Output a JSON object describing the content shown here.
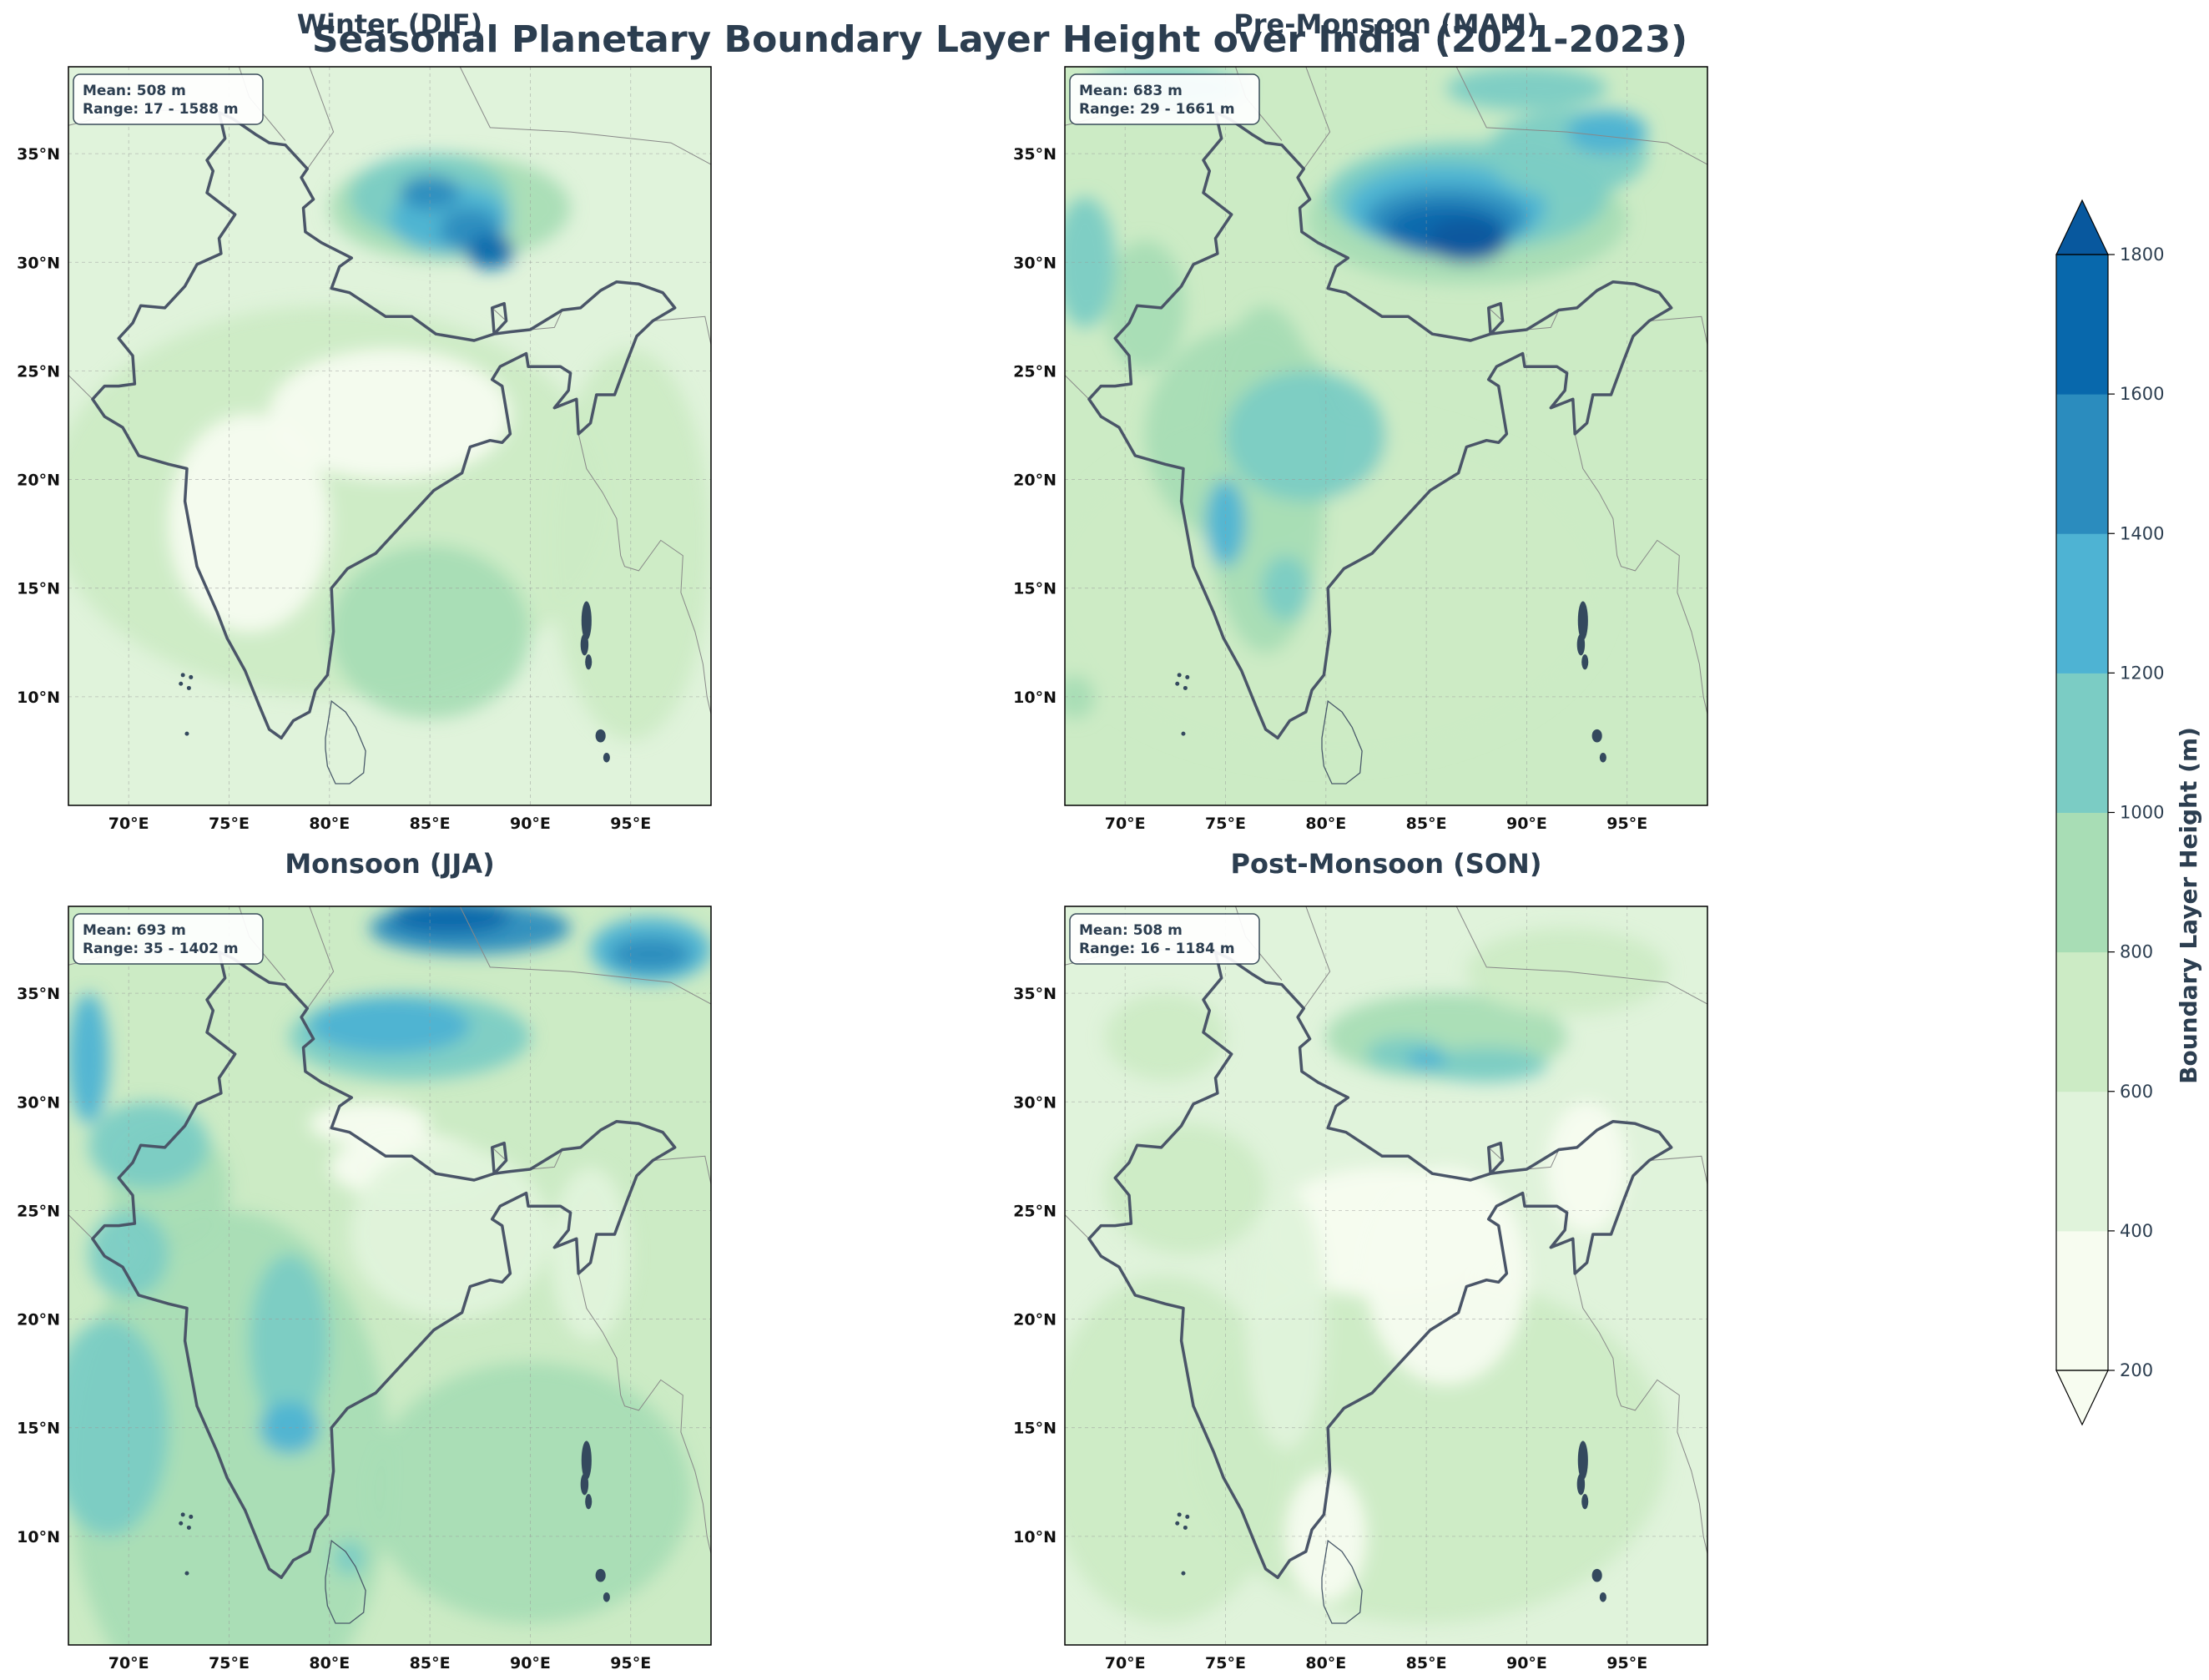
{
  "title": "Seasonal Planetary Boundary Layer Height over India (2021-2023)",
  "colorbar": {
    "label": "Boundary Layer Height (m)",
    "ticks": [
      "200",
      "400",
      "600",
      "800",
      "1000",
      "1200",
      "1400",
      "1600",
      "1800"
    ],
    "levels": [
      200,
      400,
      600,
      800,
      1000,
      1200,
      1400,
      1600,
      1800
    ],
    "colors": [
      "#f7fcf0",
      "#e0f3db",
      "#ccebc5",
      "#a8ddb5",
      "#7bccc4",
      "#4eb3d3",
      "#2b8cbe",
      "#0868ac",
      "#08589e"
    ],
    "extend": "both"
  },
  "axes": {
    "lon_ticks": [
      "70°E",
      "75°E",
      "80°E",
      "85°E",
      "90°E",
      "95°E"
    ],
    "lon_values": [
      70,
      75,
      80,
      85,
      90,
      95
    ],
    "lat_ticks": [
      "10°N",
      "15°N",
      "20°N",
      "25°N",
      "30°N",
      "35°N"
    ],
    "lat_values": [
      10,
      15,
      20,
      25,
      30,
      35
    ],
    "lon_range": [
      67,
      99
    ],
    "lat_range": [
      5,
      39
    ]
  },
  "panels": [
    {
      "title": "Winter (DJF)",
      "mean": "Mean: 508 m",
      "range": "Range: 17 - 1588 m"
    },
    {
      "title": "Pre-Monsoon (MAM)",
      "mean": "Mean: 683 m",
      "range": "Range: 29 - 1661 m"
    },
    {
      "title": "Monsoon (JJA)",
      "mean": "Mean: 693 m",
      "range": "Range: 35 - 1402 m"
    },
    {
      "title": "Post-Monsoon (SON)",
      "mean": "Mean: 508 m",
      "range": "Range: 16 - 1184 m"
    }
  ]
}
